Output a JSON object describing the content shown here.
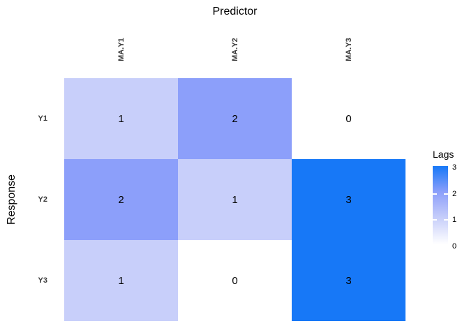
{
  "title": "Predictor",
  "y_axis_title": "Response",
  "legend": {
    "title": "Lags",
    "tick_labels": [
      "3",
      "2",
      "1",
      "0"
    ]
  },
  "chart_data": {
    "type": "heatmap",
    "title": "Predictor",
    "xlabel": "Predictor",
    "ylabel": "Response",
    "columns": [
      "MA.Y1",
      "MA.Y2",
      "MA.Y3"
    ],
    "rows": [
      "Y1",
      "Y2",
      "Y3"
    ],
    "values": [
      [
        1,
        2,
        0
      ],
      [
        2,
        1,
        3
      ],
      [
        1,
        0,
        3
      ]
    ],
    "legend_title": "Lags",
    "legend_range": [
      0,
      3
    ],
    "legend_position": "right",
    "grid": false,
    "value_colors": {
      "0": "#ffffff",
      "1": "#c8cffa",
      "2": "#8c9ffa",
      "3": "#1778f7"
    },
    "accent_high": "#1778f7",
    "accent_low": "#ffffff"
  }
}
